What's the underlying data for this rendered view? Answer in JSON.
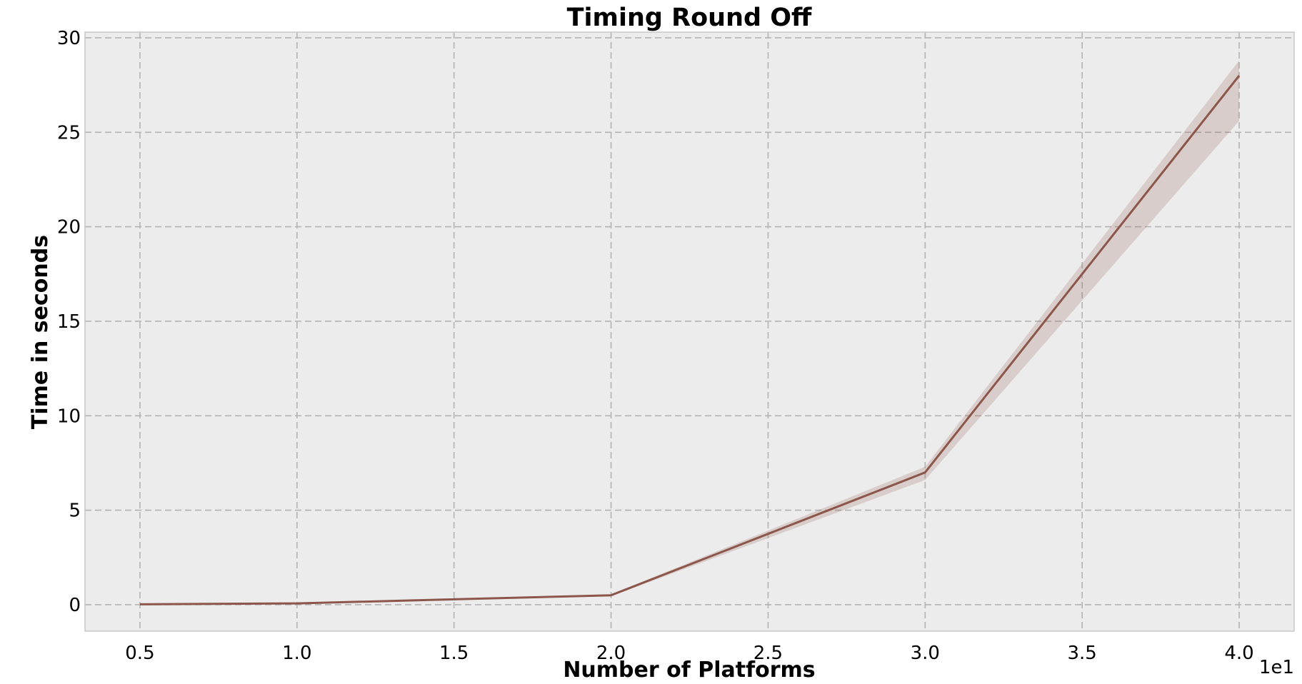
{
  "chart_data": {
    "type": "line",
    "title": "Timing Round Off",
    "xlabel": "Number of Platforms",
    "ylabel": "Time in seconds",
    "x_offset_label": "1e1",
    "x_ticks": [
      0.5,
      1.0,
      1.5,
      2.0,
      2.5,
      3.0,
      3.5,
      4.0
    ],
    "x_tick_labels": [
      "0.5",
      "1.0",
      "1.5",
      "2.0",
      "2.5",
      "3.0",
      "3.5",
      "4.0"
    ],
    "y_ticks": [
      0,
      5,
      10,
      15,
      20,
      25,
      30
    ],
    "y_tick_labels": [
      "0",
      "5",
      "10",
      "15",
      "20",
      "25",
      "30"
    ],
    "xlim": [
      0.325,
      4.175
    ],
    "ylim": [
      -1.4,
      30.3
    ],
    "grid": true,
    "series": [
      {
        "x": [
          0.5,
          1.0,
          2.0,
          3.0,
          4.0
        ],
        "y": [
          0.02,
          0.07,
          0.5,
          7.0,
          28.0
        ],
        "ci_lower": [
          0.02,
          0.06,
          0.45,
          6.6,
          25.6
        ],
        "ci_upper": [
          0.03,
          0.08,
          0.55,
          7.3,
          28.8
        ]
      }
    ],
    "colors": {
      "line": "#8c564b",
      "band": "#8c564b",
      "plot_background": "#ececec",
      "axes_edge": "#c8c8c8"
    }
  }
}
